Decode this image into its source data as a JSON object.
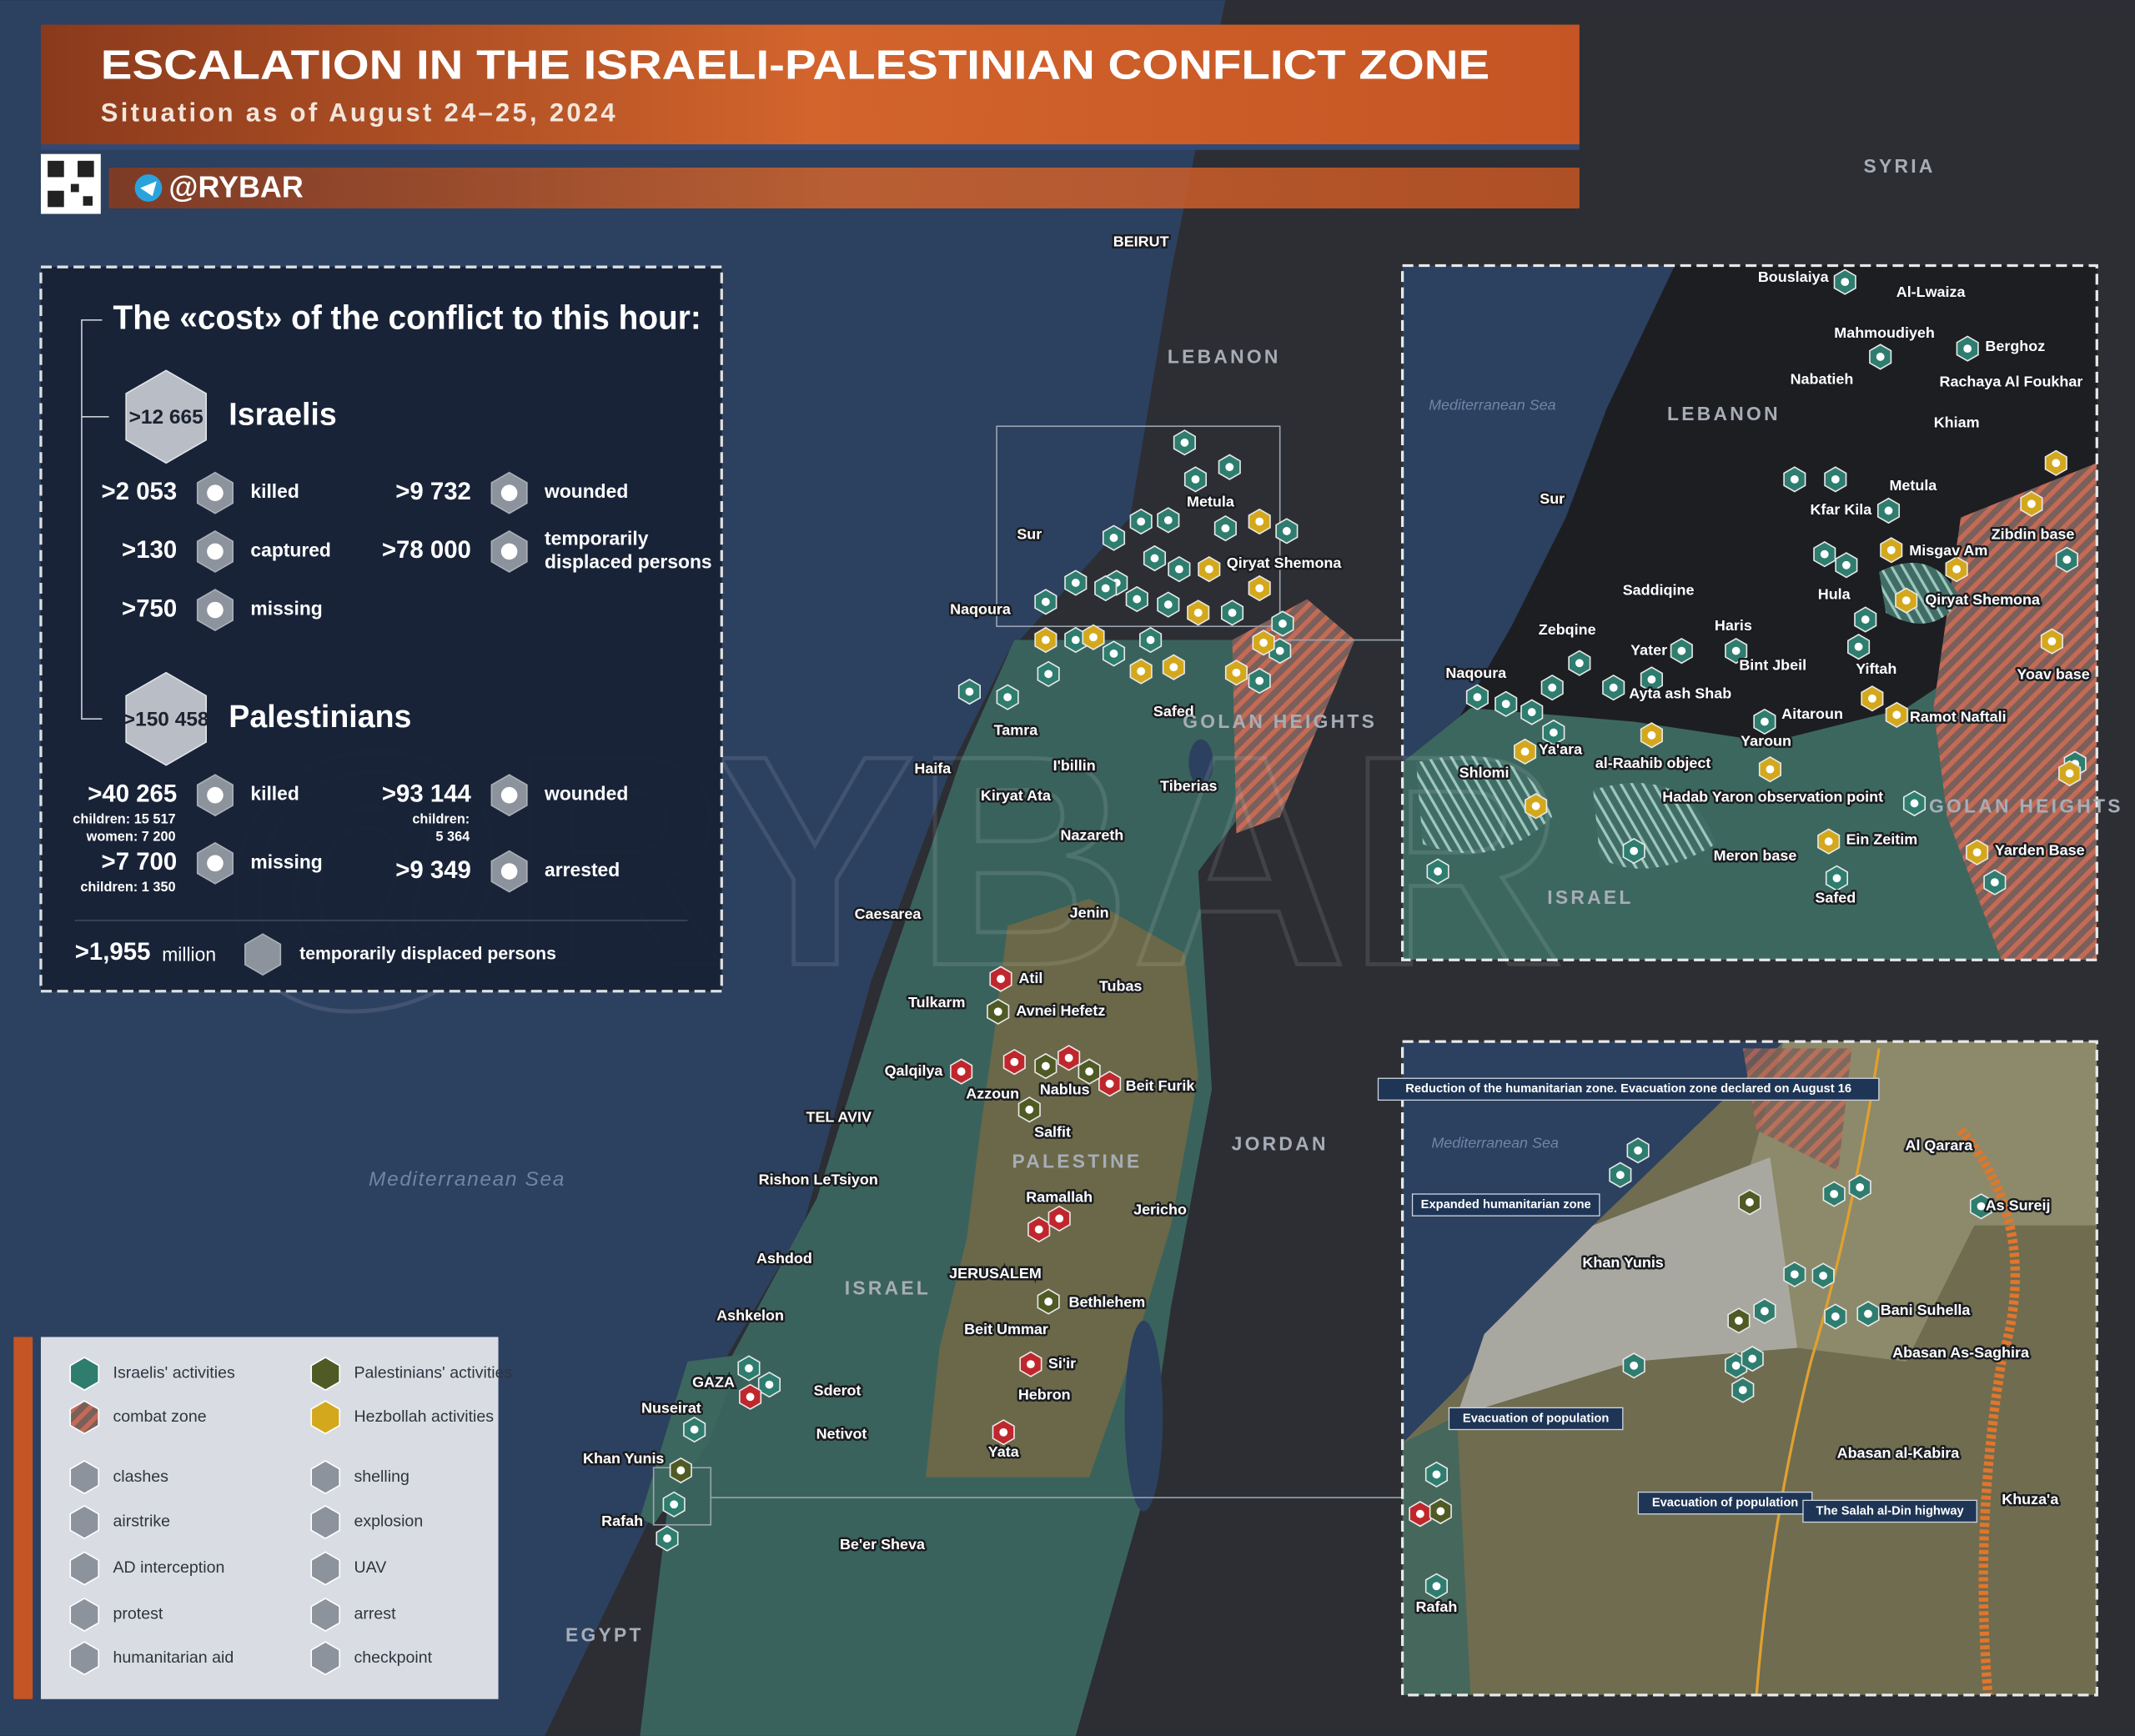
{
  "header": {
    "title": "ESCALATION IN THE ISRAELI-PALESTINIAN CONFLICT ZONE",
    "subtitle": "Situation as of August 24–25, 2024",
    "handle": "@RYBAR"
  },
  "stats": {
    "title": "The «cost» of the conflict to this hour:",
    "israelis": {
      "total": ">12 665",
      "label": "Israelis",
      "items": [
        {
          "value": ">2 053",
          "label": [
            "killed"
          ]
        },
        {
          "value": ">9 732",
          "label": [
            "wounded"
          ]
        },
        {
          "value": ">130",
          "label": [
            "captured"
          ]
        },
        {
          "value": ">78 000",
          "label": [
            "temporarily",
            "displaced persons"
          ]
        },
        {
          "value": ">750",
          "label": [
            "missing"
          ]
        }
      ]
    },
    "palestinians": {
      "total": ">150 458",
      "label": "Palestinians",
      "items": [
        {
          "value": ">40 265",
          "label": [
            "killed"
          ],
          "sub": [
            "children: 15 517",
            "women: 7 200"
          ]
        },
        {
          "value": ">93 144",
          "label": [
            "wounded"
          ],
          "sub": [
            "children:",
            "5 364"
          ]
        },
        {
          "value": ">7 700",
          "label": [
            "missing"
          ],
          "sub": [
            "children: 1 350"
          ]
        },
        {
          "value": ">9 349",
          "label": [
            "arrested"
          ]
        }
      ]
    },
    "displaced": {
      "value": ">1,955",
      "unit": "million",
      "label": "temporarily displaced persons"
    }
  },
  "legend": {
    "items": [
      "Israelis' activities",
      "combat zone",
      "clashes",
      "airstrike",
      "AD interception",
      "protest",
      "humanitarian aid",
      "Palestinians' activities",
      "Hezbollah activities",
      "shelling",
      "explosion",
      "UAV",
      "arrest",
      "checkpoint"
    ]
  },
  "map": {
    "labels": [
      "BEIRUT",
      "LEBANON",
      "SYRIA",
      "Sur",
      "Naqoura",
      "Metula",
      "Qiryat Shemona",
      "Safed",
      "GOLAN HEIGHTS",
      "Tamra",
      "I'billin",
      "Haifa",
      "Kiryat Ata",
      "Tiberias",
      "Nazareth",
      "Caesarea",
      "Jenin",
      "Atil",
      "Tubas",
      "Tulkarm",
      "Avnei Hefetz",
      "Qalqilya",
      "Beit Furik",
      "Azzoun",
      "Nablus",
      "Salfit",
      "TEL AVIV",
      "PALESTINE",
      "JORDAN",
      "Mediterranean Sea",
      "Rishon LeTsiyon",
      "Ramallah",
      "Jericho",
      "Ashdod",
      "ISRAEL",
      "JERUSALEM",
      "Bethlehem",
      "Ashkelon",
      "Beit Ummar",
      "Si'ir",
      "GAZA",
      "Sderot",
      "Hebron",
      "Nuseirat",
      "Netivot",
      "Yata",
      "Khan Yunis",
      "Rafah",
      "Be'er Sheva",
      "EGYPT"
    ]
  },
  "inset_north": {
    "labels": [
      "Bouslaiya",
      "Al-Lwaiza",
      "Mahmoudiyeh",
      "Berghoz",
      "Nabatieh",
      "Rachaya Al Foukhar",
      "Mediterranean Sea",
      "LEBANON",
      "Khiam",
      "Sur",
      "Metula",
      "Kfar Kila",
      "Zibdin base",
      "Misgav Am",
      "Saddiqine",
      "Hula",
      "Qiryat Shemona",
      "Zebqine",
      "Haris",
      "Yater",
      "Bint Jbeil",
      "Yiftah",
      "Yoav base",
      "Naqoura",
      "Ayta ash Shab",
      "Aitaroun",
      "Ramot Naftali",
      "Yaroun",
      "Ya'ara",
      "al-Raahib object",
      "Shlomi",
      "Hadab Yaron observation point",
      "GOLAN HEIGHTS",
      "Ein Zeitim",
      "Yarden Base",
      "Meron base",
      "ISRAEL",
      "Safed"
    ]
  },
  "inset_gaza": {
    "labels": [
      "Reduction of the humanitarian zone. Evacuation zone declared on August 16",
      "Mediterranean Sea",
      "Al Qarara",
      "Expanded humanitarian zone",
      "As Sureij",
      "Khan Yunis",
      "Bani Suhella",
      "Abasan As-Saghira",
      "Evacuation of population",
      "Abasan al-Kabira",
      "Evacuation of population",
      "The Salah al-Din highway",
      "Khuza'a",
      "Rafah"
    ]
  }
}
